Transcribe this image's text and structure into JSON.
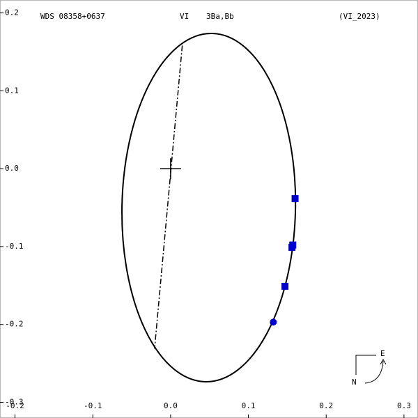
{
  "chart_data": {
    "type": "orbit",
    "header": [
      "WDS 08358+0637",
      "VI",
      "3Ba,Bb",
      "(VI_2023)"
    ],
    "xlim": [
      -0.2193,
      0.318
    ],
    "ylim": [
      -0.3201,
      0.2165
    ],
    "xticks": [
      -0.2,
      -0.1,
      {
        "value": 0,
        "label": "0.0"
      },
      0.1,
      0.2,
      0.3
    ],
    "yticks": [
      0.2,
      0.1,
      {
        "value": 0,
        "label": "0.0"
      },
      -0.1,
      -0.2,
      -0.3
    ],
    "orbit": {
      "cx": 0.049,
      "cy": -0.05,
      "rx": 0.1115,
      "ry": 0.2236,
      "angle": 1.1
    },
    "node_line": {
      "x": [
        0.015,
        -0.0206
      ],
      "y": [
        0.158,
        -0.231
      ]
    },
    "observations": {
      "color": "#0000cc",
      "x": [
        0.16,
        0.157,
        0.156,
        0.147,
        0.132
      ],
      "y": [
        -0.0385,
        -0.098,
        -0.101,
        -0.151,
        -0.197
      ],
      "markers": [
        "square",
        "square",
        "square",
        "square",
        "circle"
      ]
    },
    "compass": {
      "north": "N",
      "east": "E"
    }
  }
}
